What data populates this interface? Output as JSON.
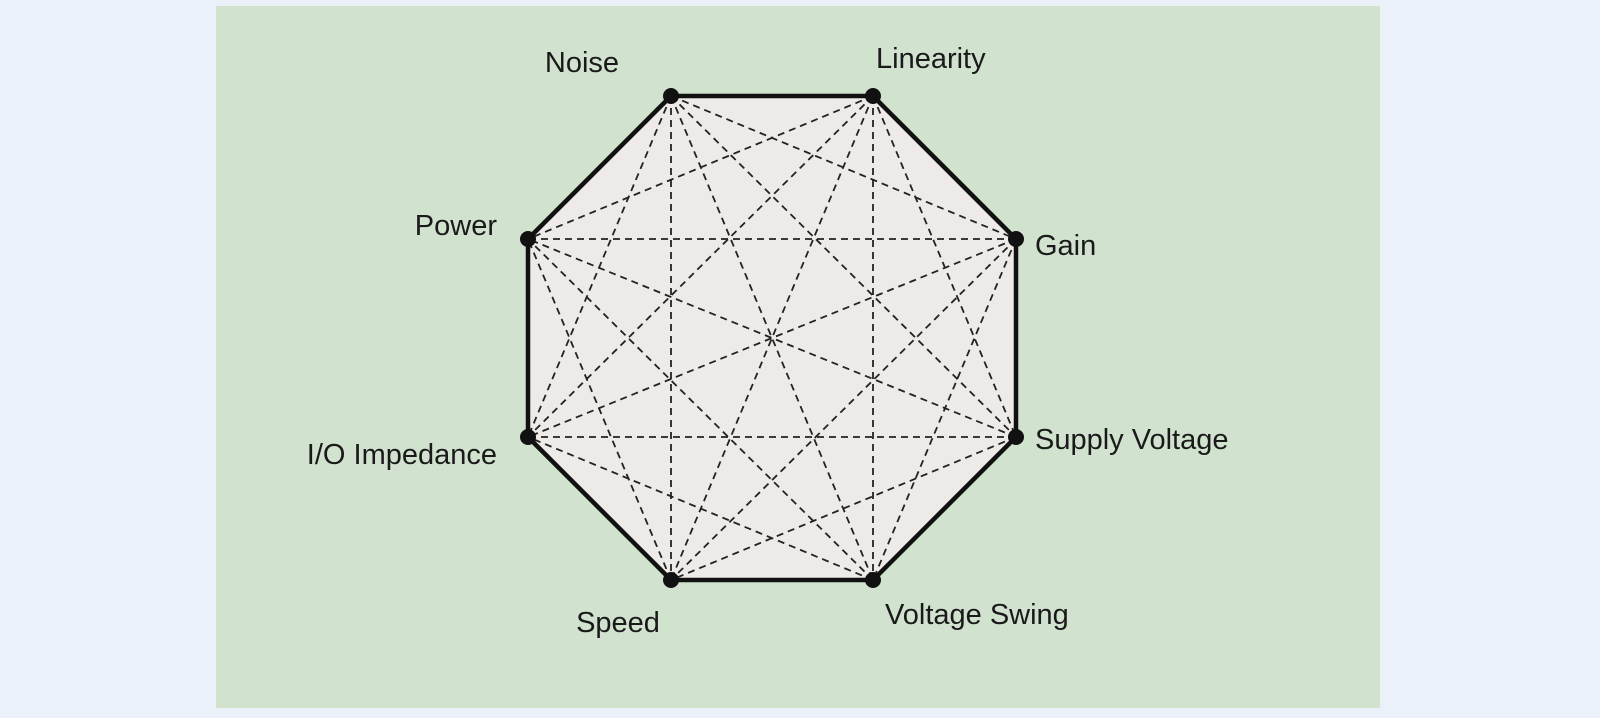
{
  "diagram": {
    "nodes": [
      {
        "id": "noise",
        "label": "Noise"
      },
      {
        "id": "linearity",
        "label": "Linearity"
      },
      {
        "id": "gain",
        "label": "Gain"
      },
      {
        "id": "supply_voltage",
        "label": "Supply Voltage"
      },
      {
        "id": "voltage_swing",
        "label": "Voltage Swing"
      },
      {
        "id": "speed",
        "label": "Speed"
      },
      {
        "id": "io_impedance",
        "label": "I/O Impedance"
      },
      {
        "id": "power",
        "label": "Power"
      }
    ],
    "colors": {
      "page_background": "#eaf1f9",
      "panel_background": "#d1e3cf",
      "octagon_fill": "#eeeae8",
      "lines": "#111111"
    },
    "connections": "every node is connected to every other node; adjacent nodes by solid edges, non-adjacent nodes by dashed lines"
  }
}
